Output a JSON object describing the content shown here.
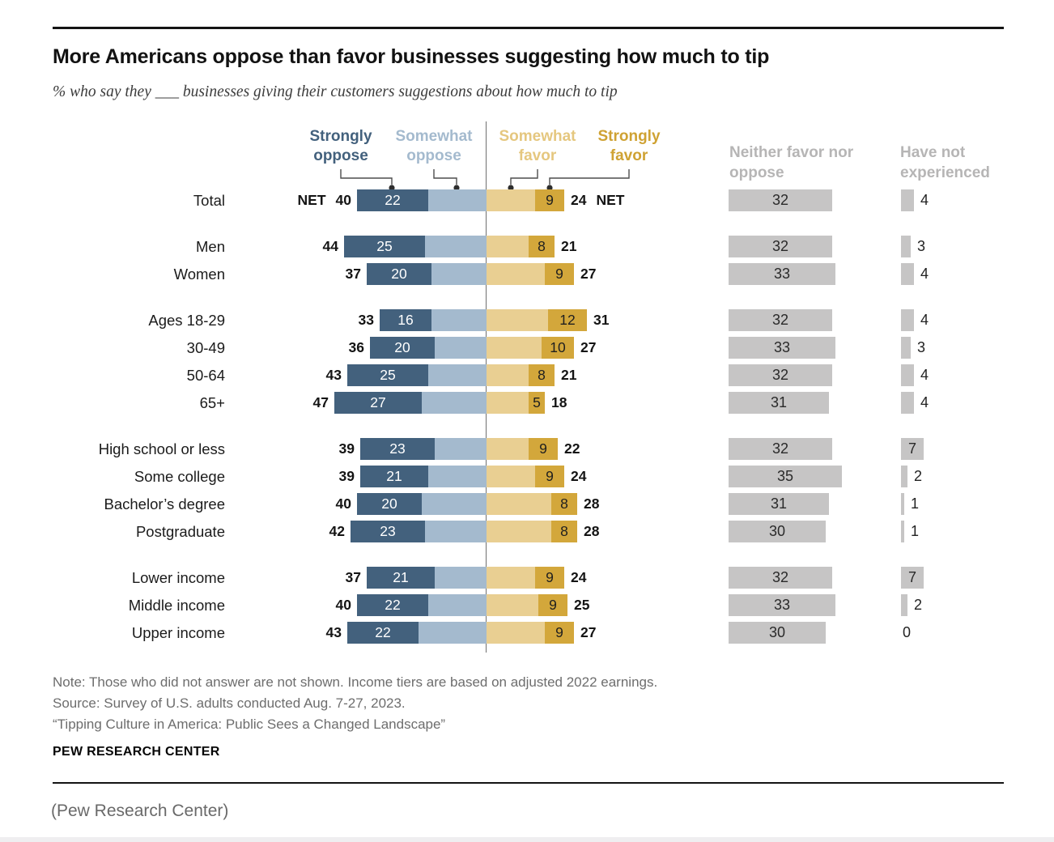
{
  "title": "More Americans oppose than favor businesses suggesting how much to tip",
  "subtitle": "% who say they ___ businesses giving their customers suggestions about how much to tip",
  "chart_data": {
    "type": "bar",
    "variant": "diverging-stacked-horizontal",
    "unit": "percent",
    "net_label": "NET",
    "legend": {
      "strongly_oppose": "Strongly oppose",
      "somewhat_oppose": "Somewhat oppose",
      "somewhat_favor": "Somewhat favor",
      "strongly_favor": "Strongly favor"
    },
    "right_headers": [
      "Neither favor nor oppose",
      "Have not experienced"
    ],
    "colors": {
      "strongly_oppose": "#43617D",
      "somewhat_oppose": "#A4BACE",
      "somewhat_favor": "#E9CF92",
      "strongly_favor": "#D3A73B",
      "neutral_bar": "#C6C5C5",
      "neutral_header_text": "#B6B5B5",
      "legend_somewhat_favor_text": "#E5C77F",
      "legend_strongly_favor_text": "#CFA233"
    },
    "groups": [
      {
        "name": "total",
        "rows": [
          {
            "label": "Total",
            "net_oppose": 40,
            "strongly_oppose": 22,
            "somewhat_oppose": 18,
            "somewhat_favor": 15,
            "strongly_favor": 9,
            "net_favor": 24,
            "neither": 32,
            "not_experienced": 4
          }
        ]
      },
      {
        "name": "gender",
        "rows": [
          {
            "label": "Men",
            "net_oppose": 44,
            "strongly_oppose": 25,
            "somewhat_oppose": 19,
            "somewhat_favor": 13,
            "strongly_favor": 8,
            "net_favor": 21,
            "neither": 32,
            "not_experienced": 3
          },
          {
            "label": "Women",
            "net_oppose": 37,
            "strongly_oppose": 20,
            "somewhat_oppose": 17,
            "somewhat_favor": 18,
            "strongly_favor": 9,
            "net_favor": 27,
            "neither": 33,
            "not_experienced": 4
          }
        ]
      },
      {
        "name": "age",
        "rows": [
          {
            "label": "Ages 18-29",
            "net_oppose": 33,
            "strongly_oppose": 16,
            "somewhat_oppose": 17,
            "somewhat_favor": 19,
            "strongly_favor": 12,
            "net_favor": 31,
            "neither": 32,
            "not_experienced": 4
          },
          {
            "label": "30-49",
            "net_oppose": 36,
            "strongly_oppose": 20,
            "somewhat_oppose": 16,
            "somewhat_favor": 17,
            "strongly_favor": 10,
            "net_favor": 27,
            "neither": 33,
            "not_experienced": 3
          },
          {
            "label": "50-64",
            "net_oppose": 43,
            "strongly_oppose": 25,
            "somewhat_oppose": 18,
            "somewhat_favor": 13,
            "strongly_favor": 8,
            "net_favor": 21,
            "neither": 32,
            "not_experienced": 4
          },
          {
            "label": "65+",
            "net_oppose": 47,
            "strongly_oppose": 27,
            "somewhat_oppose": 20,
            "somewhat_favor": 13,
            "strongly_favor": 5,
            "net_favor": 18,
            "neither": 31,
            "not_experienced": 4
          }
        ]
      },
      {
        "name": "education",
        "rows": [
          {
            "label": "High school or less",
            "net_oppose": 39,
            "strongly_oppose": 23,
            "somewhat_oppose": 16,
            "somewhat_favor": 13,
            "strongly_favor": 9,
            "net_favor": 22,
            "neither": 32,
            "not_experienced": 7
          },
          {
            "label": "Some college",
            "net_oppose": 39,
            "strongly_oppose": 21,
            "somewhat_oppose": 18,
            "somewhat_favor": 15,
            "strongly_favor": 9,
            "net_favor": 24,
            "neither": 35,
            "not_experienced": 2
          },
          {
            "label": "Bachelor’s degree",
            "net_oppose": 40,
            "strongly_oppose": 20,
            "somewhat_oppose": 20,
            "somewhat_favor": 20,
            "strongly_favor": 8,
            "net_favor": 28,
            "neither": 31,
            "not_experienced": 1
          },
          {
            "label": "Postgraduate",
            "net_oppose": 42,
            "strongly_oppose": 23,
            "somewhat_oppose": 19,
            "somewhat_favor": 20,
            "strongly_favor": 8,
            "net_favor": 28,
            "neither": 30,
            "not_experienced": 1
          }
        ]
      },
      {
        "name": "income",
        "rows": [
          {
            "label": "Lower income",
            "net_oppose": 37,
            "strongly_oppose": 21,
            "somewhat_oppose": 16,
            "somewhat_favor": 15,
            "strongly_favor": 9,
            "net_favor": 24,
            "neither": 32,
            "not_experienced": 7
          },
          {
            "label": "Middle income",
            "net_oppose": 40,
            "strongly_oppose": 22,
            "somewhat_oppose": 18,
            "somewhat_favor": 16,
            "strongly_favor": 9,
            "net_favor": 25,
            "neither": 33,
            "not_experienced": 2
          },
          {
            "label": "Upper income",
            "net_oppose": 43,
            "strongly_oppose": 22,
            "somewhat_oppose": 21,
            "somewhat_favor": 18,
            "strongly_favor": 9,
            "net_favor": 27,
            "neither": 30,
            "not_experienced": 0
          }
        ]
      }
    ]
  },
  "footer": {
    "note": "Note: Those who did not answer are not shown. Income tiers are based on adjusted 2022 earnings.",
    "source": "Source: Survey of U.S. adults conducted Aug. 7-27, 2023.",
    "report": "“Tipping Culture in America: Public Sees a Changed Landscape”",
    "brand": "PEW RESEARCH CENTER",
    "caption": "(Pew Research Center)"
  }
}
